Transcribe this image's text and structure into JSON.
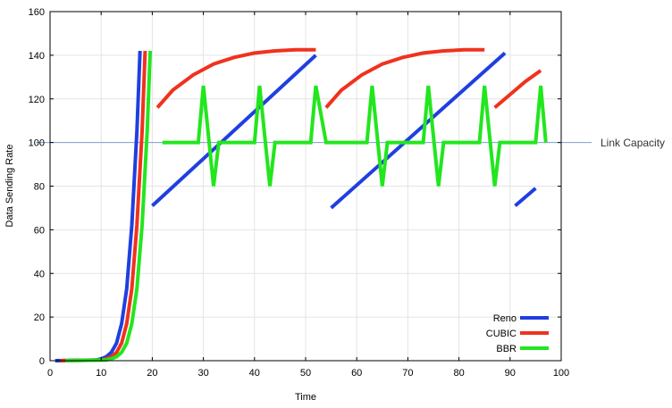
{
  "chart_data": {
    "type": "line",
    "xlabel": "Time",
    "ylabel": "Data Sending Rate",
    "xlim": [
      0,
      100
    ],
    "ylim": [
      0,
      160
    ],
    "xticks": [
      0,
      10,
      20,
      30,
      40,
      50,
      60,
      70,
      80,
      90,
      100
    ],
    "yticks": [
      0,
      20,
      40,
      60,
      80,
      100,
      120,
      140,
      160
    ],
    "grid": true,
    "legend_position": "bottom-right",
    "reference_line": {
      "y": 100,
      "label": "Link Capacity",
      "color": "#7f9fd0"
    },
    "series": [
      {
        "name": "Reno",
        "color": "#1f3fe0",
        "segments": [
          [
            [
              1,
              0
            ],
            [
              9,
              0.3
            ],
            [
              10,
              0.8
            ],
            [
              11,
              1.8
            ],
            [
              12,
              3.8
            ],
            [
              13,
              8
            ],
            [
              14,
              17
            ],
            [
              15,
              33
            ],
            [
              16,
              62
            ],
            [
              17,
              105
            ],
            [
              17.6,
              142
            ]
          ],
          [
            [
              20,
              71
            ],
            [
              52,
              140
            ]
          ],
          [
            [
              55,
              70
            ],
            [
              89,
              141
            ]
          ],
          [
            [
              91,
              71
            ],
            [
              95,
              79
            ]
          ]
        ]
      },
      {
        "name": "CUBIC",
        "color": "#f0321e",
        "segments": [
          [
            [
              2,
              0
            ],
            [
              10,
              0.3
            ],
            [
              11,
              0.8
            ],
            [
              12,
              1.8
            ],
            [
              13,
              3.8
            ],
            [
              14,
              8
            ],
            [
              15,
              17
            ],
            [
              16,
              33
            ],
            [
              17,
              62
            ],
            [
              18,
              105
            ],
            [
              18.6,
              142
            ]
          ],
          [
            [
              21,
              116
            ],
            [
              24,
              124
            ],
            [
              28,
              131
            ],
            [
              32,
              136
            ],
            [
              36,
              139
            ],
            [
              40,
              141
            ],
            [
              44,
              142
            ],
            [
              48,
              142.5
            ],
            [
              52,
              142.5
            ]
          ],
          [
            [
              54,
              116
            ],
            [
              57,
              124
            ],
            [
              61,
              131
            ],
            [
              65,
              136
            ],
            [
              69,
              139
            ],
            [
              73,
              141
            ],
            [
              77,
              142
            ],
            [
              81,
              142.5
            ],
            [
              85,
              142.5
            ]
          ],
          [
            [
              87,
              116
            ],
            [
              90,
              122
            ],
            [
              93,
              128
            ],
            [
              96,
              133
            ]
          ]
        ]
      },
      {
        "name": "BBR",
        "color": "#22e61e",
        "segments": [
          [
            [
              3,
              0
            ],
            [
              11,
              0.3
            ],
            [
              12,
              0.8
            ],
            [
              13,
              1.8
            ],
            [
              14,
              3.8
            ],
            [
              15,
              8
            ],
            [
              16,
              17
            ],
            [
              17,
              33
            ],
            [
              18,
              62
            ],
            [
              19,
              105
            ],
            [
              19.6,
              142
            ]
          ],
          [
            [
              22,
              100
            ],
            [
              29,
              100
            ],
            [
              30,
              126
            ],
            [
              32,
              80
            ],
            [
              33,
              100
            ],
            [
              40,
              100
            ],
            [
              41,
              126
            ],
            [
              43,
              80
            ],
            [
              44,
              100
            ],
            [
              51,
              100
            ],
            [
              52,
              126
            ],
            [
              54,
              100
            ],
            [
              62,
              100
            ],
            [
              63,
              126
            ],
            [
              65,
              80
            ],
            [
              66,
              100
            ],
            [
              73,
              100
            ],
            [
              74,
              126
            ],
            [
              76,
              80
            ],
            [
              77,
              100
            ],
            [
              84,
              100
            ],
            [
              85,
              126
            ],
            [
              87,
              80
            ],
            [
              88,
              100
            ],
            [
              95,
              100
            ],
            [
              96,
              126
            ],
            [
              97,
              100
            ]
          ]
        ]
      }
    ]
  }
}
